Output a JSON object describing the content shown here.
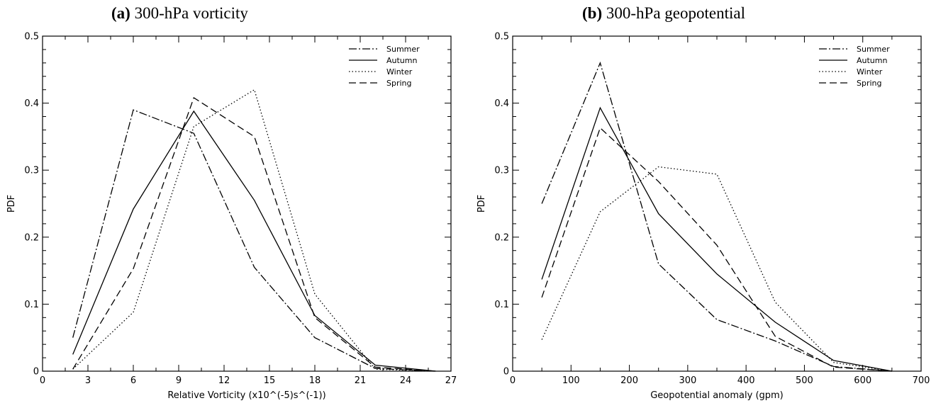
{
  "chart_data": [
    {
      "type": "line",
      "panel_label": "(a)",
      "title": "300-hPa vorticity",
      "xlabel": "Relative Vorticity (x10^(-5)s^(-1))",
      "ylabel": "PDF",
      "xlim": [
        0,
        27
      ],
      "ylim": [
        0,
        0.5
      ],
      "xticks": [
        "0",
        "3",
        "6",
        "9",
        "12",
        "15",
        "18",
        "21",
        "24",
        "27"
      ],
      "yticks": [
        "0",
        "0.1",
        "0.2",
        "0.3",
        "0.4",
        "0.5"
      ],
      "legend_position": "top-right",
      "x": [
        2,
        6,
        10,
        14,
        18,
        22,
        26
      ],
      "series": [
        {
          "name": "Summer",
          "dash": "dashdot",
          "values": [
            0.05,
            0.39,
            0.355,
            0.155,
            0.05,
            0.004,
            0.0
          ]
        },
        {
          "name": "Autumn",
          "dash": "solid",
          "values": [
            0.025,
            0.242,
            0.388,
            0.255,
            0.083,
            0.009,
            0.0
          ]
        },
        {
          "name": "Winter",
          "dash": "dotted",
          "values": [
            0.003,
            0.088,
            0.365,
            0.42,
            0.115,
            0.003,
            0.0
          ]
        },
        {
          "name": "Spring",
          "dash": "dashed",
          "values": [
            0.003,
            0.153,
            0.408,
            0.35,
            0.08,
            0.006,
            0.0
          ]
        }
      ]
    },
    {
      "type": "line",
      "panel_label": "(b)",
      "title": "300-hPa geopotential",
      "xlabel": "Geopotential anomaly (gpm)",
      "ylabel": "PDF",
      "xlim": [
        0,
        700
      ],
      "ylim": [
        0,
        0.5
      ],
      "xticks": [
        "0",
        "100",
        "200",
        "300",
        "400",
        "500",
        "600",
        "700"
      ],
      "yticks": [
        "0",
        "0.1",
        "0.2",
        "0.3",
        "0.4",
        "0.5"
      ],
      "legend_position": "top-right",
      "x": [
        50,
        150,
        250,
        350,
        450,
        550,
        650
      ],
      "series": [
        {
          "name": "Summer",
          "dash": "dashdot",
          "values": [
            0.25,
            0.46,
            0.16,
            0.077,
            0.045,
            0.007,
            0.0
          ]
        },
        {
          "name": "Autumn",
          "dash": "solid",
          "values": [
            0.137,
            0.393,
            0.235,
            0.145,
            0.073,
            0.016,
            0.0
          ]
        },
        {
          "name": "Winter",
          "dash": "dotted",
          "values": [
            0.047,
            0.238,
            0.305,
            0.294,
            0.103,
            0.013,
            0.0
          ]
        },
        {
          "name": "Spring",
          "dash": "dashed",
          "values": [
            0.11,
            0.363,
            0.283,
            0.188,
            0.052,
            0.006,
            0.0
          ]
        }
      ]
    }
  ]
}
